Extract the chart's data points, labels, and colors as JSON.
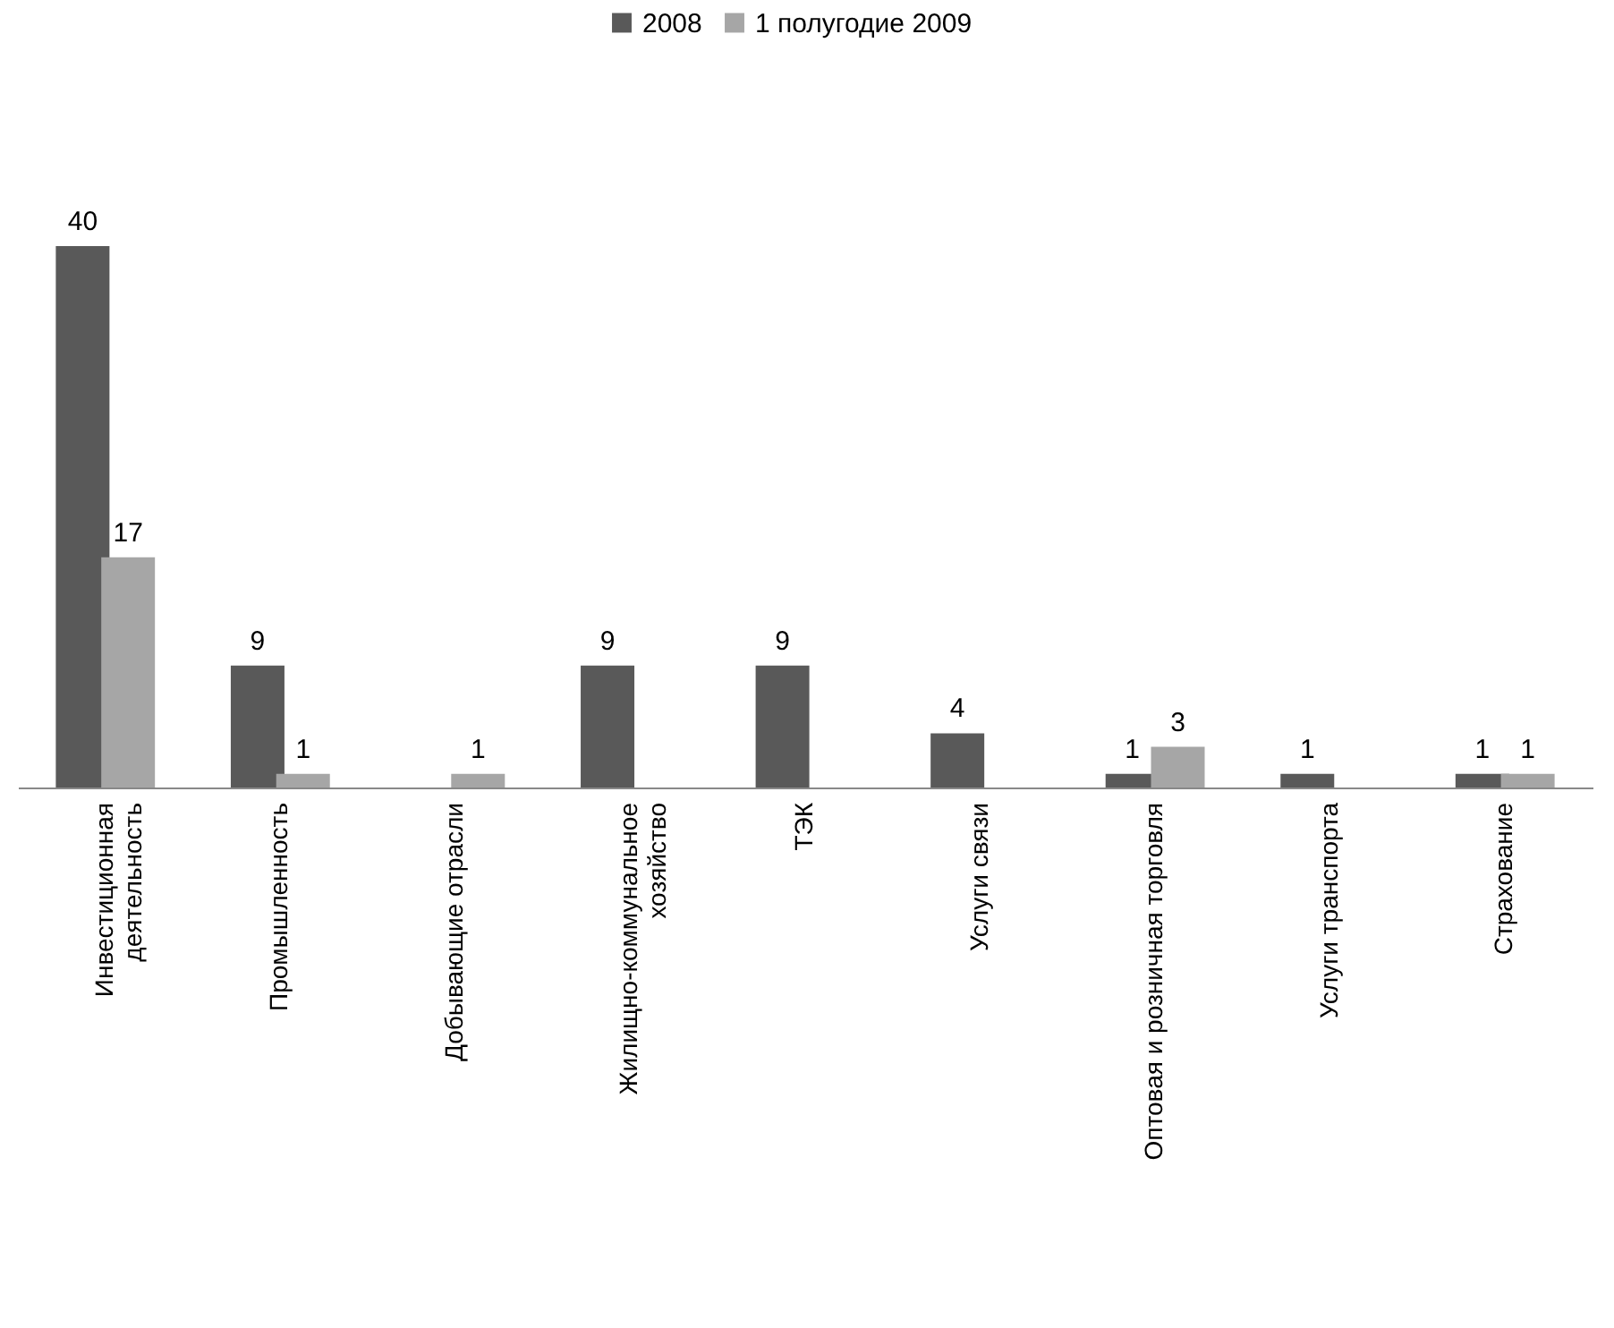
{
  "chart_data": {
    "type": "bar",
    "categories": [
      "Инвестиционная\nдеятельность",
      "Промышленность",
      "Добывающие отрасли",
      "Жилищно-коммунальное\nхозяйство",
      "ТЭК",
      "Услуги связи",
      "Оптовая и розничная торговля",
      "Услуги  транспорта",
      "Страхование"
    ],
    "series": [
      {
        "name": "2008",
        "color": "#595959",
        "values": [
          40,
          9,
          null,
          9,
          9,
          4,
          1,
          1,
          1
        ]
      },
      {
        "name": "1 полугодие 2009",
        "color": "#a6a6a6",
        "values": [
          17,
          1,
          1,
          null,
          null,
          null,
          3,
          null,
          1
        ]
      }
    ],
    "data_labels": true,
    "legend": "top",
    "grid": false
  }
}
